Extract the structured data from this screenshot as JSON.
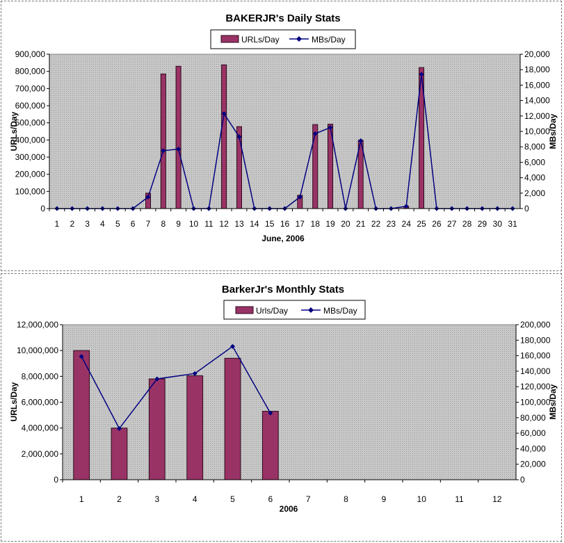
{
  "colors": {
    "bar_fill": "#993366",
    "bar_stroke": "#2b0a1a",
    "line": "#000080",
    "plot_bg": "#c0c0c0"
  },
  "chart_data": [
    {
      "type": "bar",
      "title": "BAKERJR's Daily Stats",
      "xlabel": "June, 2006",
      "ylabel": "URLs/Day",
      "y2label": "MBs/Day",
      "legend_position": "top-center",
      "grid": false,
      "categories": [
        "1",
        "2",
        "3",
        "4",
        "5",
        "6",
        "7",
        "8",
        "9",
        "10",
        "11",
        "12",
        "13",
        "14",
        "15",
        "16",
        "17",
        "18",
        "19",
        "20",
        "21",
        "22",
        "23",
        "24",
        "25",
        "26",
        "27",
        "28",
        "29",
        "30",
        "31"
      ],
      "ylim": [
        0,
        900000
      ],
      "y2lim": [
        0,
        20000
      ],
      "yticks": [
        "0",
        "100,000",
        "200,000",
        "300,000",
        "400,000",
        "500,000",
        "600,000",
        "700,000",
        "800,000",
        "900,000"
      ],
      "y2ticks": [
        "0",
        "2,000",
        "4,000",
        "6,000",
        "8,000",
        "10,000",
        "12,000",
        "14,000",
        "16,000",
        "18,000",
        "20,000"
      ],
      "series": [
        {
          "name": "URLs/Day",
          "type": "bar",
          "axis": "left",
          "values": [
            0,
            0,
            0,
            0,
            0,
            0,
            90000,
            785000,
            830000,
            0,
            0,
            838000,
            478000,
            0,
            0,
            0,
            78000,
            490000,
            492000,
            0,
            398000,
            0,
            0,
            12000,
            822000,
            0,
            0,
            0,
            0,
            0,
            0
          ]
        },
        {
          "name": "MBs/Day",
          "type": "line",
          "axis": "right",
          "values": [
            0,
            0,
            0,
            0,
            0,
            0,
            1500,
            7500,
            7700,
            0,
            0,
            12300,
            9300,
            0,
            0,
            0,
            1500,
            9700,
            10500,
            0,
            8800,
            0,
            0,
            300,
            17400,
            0,
            0,
            0,
            0,
            0,
            0
          ]
        }
      ]
    },
    {
      "type": "bar",
      "title": "BarkerJr's Monthly Stats",
      "xlabel": "2006",
      "ylabel": "URLs/Day",
      "y2label": "MBs/Day",
      "legend_position": "top-center",
      "grid": false,
      "categories": [
        "1",
        "2",
        "3",
        "4",
        "5",
        "6",
        "7",
        "8",
        "9",
        "10",
        "11",
        "12"
      ],
      "ylim": [
        0,
        12000000
      ],
      "y2lim": [
        0,
        200000
      ],
      "yticks": [
        "0",
        "2,000,000",
        "4,000,000",
        "6,000,000",
        "8,000,000",
        "10,000,000",
        "12,000,000"
      ],
      "y2ticks": [
        "0",
        "20,000",
        "40,000",
        "60,000",
        "80,000",
        "100,000",
        "120,000",
        "140,000",
        "160,000",
        "180,000",
        "200,000"
      ],
      "series": [
        {
          "name": "Urls/Day",
          "type": "bar",
          "axis": "left",
          "values": [
            10000000,
            4000000,
            7800000,
            8050000,
            9400000,
            5300000,
            null,
            null,
            null,
            null,
            null,
            null
          ]
        },
        {
          "name": "MBs/Day",
          "type": "line",
          "axis": "right",
          "values": [
            159000,
            66000,
            130000,
            137000,
            172000,
            86000,
            null,
            null,
            null,
            null,
            null,
            null
          ]
        }
      ]
    }
  ]
}
